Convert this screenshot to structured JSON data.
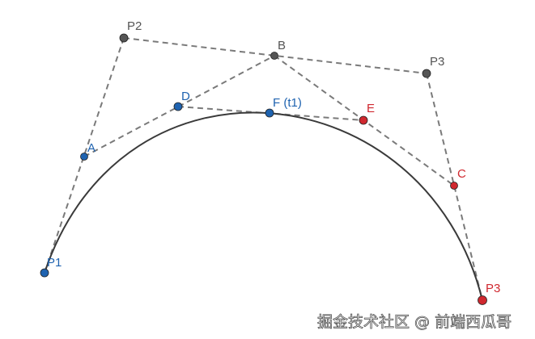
{
  "colors": {
    "gray": "#555555",
    "blue": "#1f63b0",
    "red": "#d0282f",
    "curve": "#3a3a3a",
    "dash": "#7a7a7a"
  },
  "points": {
    "P1": {
      "label": "P1",
      "group": "blue"
    },
    "P2": {
      "label": "P2",
      "group": "gray"
    },
    "P3c": {
      "label": "P3",
      "group": "gray"
    },
    "P3": {
      "label": "P3",
      "group": "red"
    },
    "A": {
      "label": "A",
      "group": "blue"
    },
    "B": {
      "label": "B",
      "group": "gray"
    },
    "C": {
      "label": "C",
      "group": "red"
    },
    "D": {
      "label": "D",
      "group": "blue"
    },
    "E": {
      "label": "E",
      "group": "red"
    },
    "F": {
      "label": "F (t1)",
      "group": "blue"
    }
  },
  "watermark": "掘金技术社区 @ 前端西瓜哥"
}
